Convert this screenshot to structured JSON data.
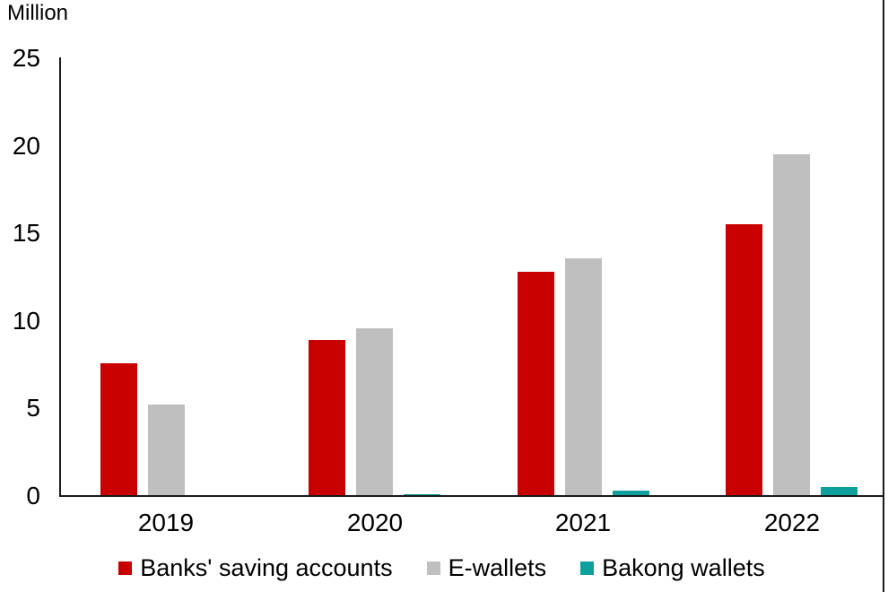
{
  "unit_label": "Million",
  "chart_data": {
    "type": "bar",
    "title": "",
    "ylabel": "Million",
    "xlabel": "",
    "categories": [
      "2019",
      "2020",
      "2021",
      "2022"
    ],
    "series": [
      {
        "name": "Banks' saving accounts",
        "color": "#c80000",
        "values": [
          7.6,
          8.9,
          12.8,
          15.5
        ]
      },
      {
        "name": "E-wallets",
        "color": "#bfbfbf",
        "values": [
          5.2,
          9.6,
          13.6,
          19.5
        ]
      },
      {
        "name": "Bakong wallets",
        "color": "#0da09d",
        "values": [
          0,
          0.1,
          0.3,
          0.5
        ]
      }
    ],
    "ylim": [
      0,
      25
    ],
    "yticks": [
      0,
      5,
      10,
      15,
      20,
      25
    ],
    "grid": false,
    "legend_position": "bottom"
  },
  "colors": {
    "axis": "#1a1a1a",
    "text": "#000000",
    "right_border": "#1a1a1a"
  }
}
